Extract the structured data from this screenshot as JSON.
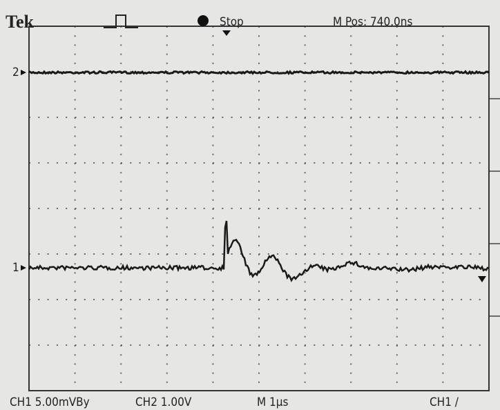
{
  "header": {
    "brand": "Tek",
    "status": "Stop",
    "position": "M Pos: 740.0ns"
  },
  "markers": {
    "ch2": "2",
    "ch1": "1"
  },
  "footer": {
    "ch1_scale": "CH1 5.00mVBy",
    "ch2_scale": "CH2 1.00V",
    "timebase": "M 1µs",
    "trigger": "CH1 /"
  }
}
